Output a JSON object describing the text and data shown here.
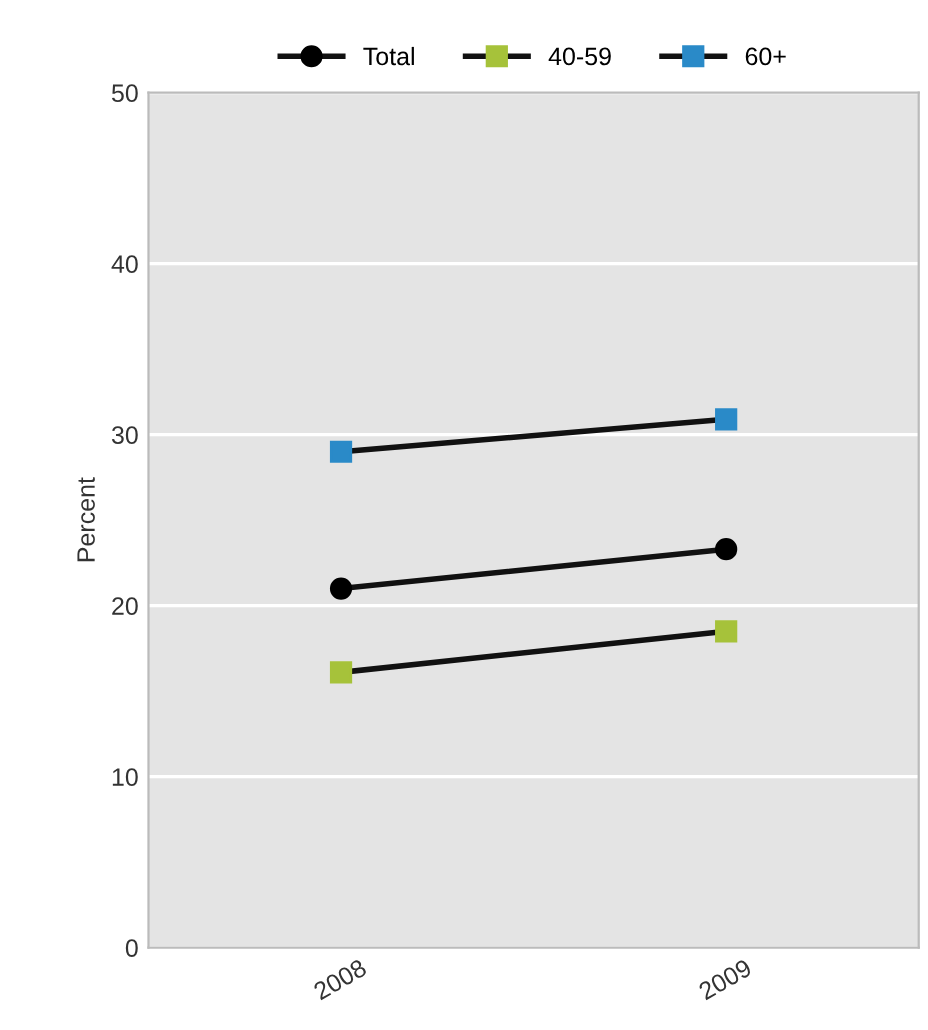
{
  "chart_data": {
    "type": "line",
    "ylabel": "Percent",
    "categories": [
      "2008",
      "2009"
    ],
    "series": [
      {
        "name": "Total",
        "color": "#000000",
        "marker": "circle",
        "values": [
          21,
          23.3
        ]
      },
      {
        "name": "40-59",
        "color": "#a6c23a",
        "marker": "square",
        "values": [
          16.1,
          18.5
        ]
      },
      {
        "name": "60+",
        "color": "#2a8ac8",
        "marker": "square",
        "values": [
          29,
          30.9
        ]
      }
    ],
    "ylim": [
      0,
      50
    ],
    "yticks": [
      0,
      10,
      20,
      30,
      40,
      50
    ],
    "grid": "y",
    "legend": "top"
  }
}
